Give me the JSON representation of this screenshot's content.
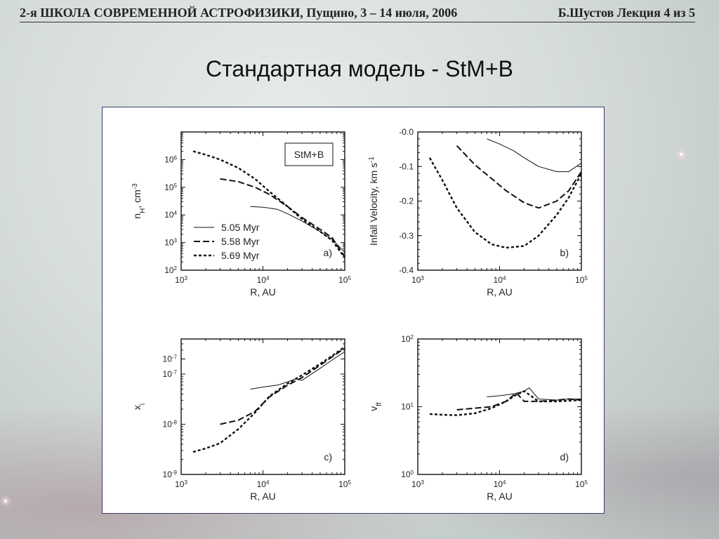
{
  "header": {
    "left": "2-я ШКОЛА СОВРЕМЕННОЙ АСТРОФИЗИКИ,   Пущино, 3 – 14 июля, 2006",
    "right": "Б.Шустов Лекция 4 из 5"
  },
  "slide_title": "Стандартная модель - StM+B",
  "chart_data": [
    {
      "type": "line",
      "panel_label": "a)",
      "box_label": "StM+B",
      "xlabel": "R, AU",
      "ylabel": "n_H, cm^-3",
      "x_scale": "log",
      "y_scale": "log",
      "xlim": [
        1000,
        100000
      ],
      "ylim": [
        100,
        10000000
      ],
      "x_ticks": [
        "10^3",
        "10^4",
        "10^5"
      ],
      "y_ticks": [
        "10^2",
        "10^3",
        "10^4",
        "10^5",
        "10^6"
      ],
      "legend": [
        "5.05 Myr",
        "5.58 Myr",
        "5.69 Myr"
      ],
      "series": [
        {
          "name": "5.05 Myr",
          "style": "solid",
          "x": [
            7000,
            10000,
            15000,
            20000,
            30000,
            50000,
            70000,
            100000
          ],
          "y": [
            20000,
            19000,
            16000,
            11000,
            6000,
            2500,
            1300,
            450
          ]
        },
        {
          "name": "5.58 Myr",
          "style": "dashed",
          "x": [
            3000,
            5000,
            8000,
            12000,
            20000,
            30000,
            50000,
            70000,
            100000
          ],
          "y": [
            200000,
            160000,
            100000,
            55000,
            20000,
            8000,
            3000,
            1500,
            300
          ]
        },
        {
          "name": "5.69 Myr",
          "style": "dotted",
          "x": [
            1400,
            2000,
            3000,
            5000,
            8000,
            12000,
            20000,
            30000,
            50000,
            70000,
            100000
          ],
          "y": [
            2000000,
            1500000,
            1000000,
            500000,
            200000,
            70000,
            20000,
            7000,
            2500,
            1200,
            280
          ]
        }
      ]
    },
    {
      "type": "line",
      "panel_label": "b)",
      "xlabel": "R, AU",
      "ylabel": "Infall Velocity, km s^-1",
      "x_scale": "log",
      "y_scale": "linear",
      "xlim": [
        1000,
        100000
      ],
      "ylim": [
        -0.4,
        0.0
      ],
      "x_ticks": [
        "10^3",
        "10^4",
        "10^5"
      ],
      "y_ticks": [
        "-0.0",
        "-0.1",
        "-0.2",
        "-0.3",
        "-0.4"
      ],
      "series": [
        {
          "name": "5.05 Myr",
          "style": "solid",
          "x": [
            7000,
            10000,
            15000,
            20000,
            30000,
            50000,
            70000,
            100000
          ],
          "y": [
            -0.02,
            -0.035,
            -0.055,
            -0.075,
            -0.1,
            -0.115,
            -0.115,
            -0.09
          ]
        },
        {
          "name": "5.58 Myr",
          "style": "dashed",
          "x": [
            3000,
            5000,
            8000,
            12000,
            20000,
            30000,
            50000,
            70000,
            100000
          ],
          "y": [
            -0.04,
            -0.095,
            -0.135,
            -0.17,
            -0.205,
            -0.22,
            -0.2,
            -0.17,
            -0.115
          ]
        },
        {
          "name": "5.69 Myr",
          "style": "dotted",
          "x": [
            1400,
            2000,
            3000,
            5000,
            8000,
            12000,
            20000,
            30000,
            50000,
            70000,
            100000
          ],
          "y": [
            -0.075,
            -0.14,
            -0.22,
            -0.29,
            -0.325,
            -0.335,
            -0.33,
            -0.3,
            -0.24,
            -0.19,
            -0.12
          ]
        }
      ]
    },
    {
      "type": "line",
      "panel_label": "c)",
      "xlabel": "R, AU",
      "ylabel": "x_i",
      "x_scale": "log",
      "y_scale": "log",
      "xlim": [
        1000,
        100000
      ],
      "ylim": [
        1e-09,
        5e-07
      ],
      "x_ticks": [
        "10^3",
        "10^4",
        "10^5"
      ],
      "y_ticks": [
        "10^-9",
        "10^-8",
        "10^-7",
        "10^-7"
      ],
      "series": [
        {
          "name": "5.05 Myr",
          "style": "solid",
          "x": [
            7000,
            10000,
            15000,
            20000,
            25000,
            30000,
            50000,
            70000,
            100000
          ],
          "y": [
            5e-08,
            5.5e-08,
            6e-08,
            7e-08,
            8e-08,
            7.5e-08,
            1.3e-07,
            1.9e-07,
            2.8e-07
          ]
        },
        {
          "name": "5.58 Myr",
          "style": "dashed",
          "x": [
            3000,
            5000,
            8000,
            12000,
            20000,
            30000,
            50000,
            70000,
            100000
          ],
          "y": [
            1e-08,
            1.2e-08,
            1.8e-08,
            3.5e-08,
            6e-08,
            8.5e-08,
            1.5e-07,
            2.2e-07,
            3.3e-07
          ]
        },
        {
          "name": "5.69 Myr",
          "style": "dotted",
          "x": [
            1400,
            2000,
            3000,
            5000,
            8000,
            12000,
            20000,
            30000,
            50000,
            70000,
            100000
          ],
          "y": [
            2.8e-09,
            3.3e-09,
            4.2e-09,
            8e-09,
            1.7e-08,
            3.6e-08,
            6.5e-08,
            9.5e-08,
            1.6e-07,
            2.3e-07,
            3.5e-07
          ]
        }
      ]
    },
    {
      "type": "line",
      "panel_label": "d)",
      "xlabel": "R, AU",
      "ylabel": "v_ff",
      "x_scale": "log",
      "y_scale": "log",
      "xlim": [
        1000,
        100000
      ],
      "ylim": [
        1,
        100
      ],
      "x_ticks": [
        "10^3",
        "10^4",
        "10^5"
      ],
      "y_ticks": [
        "10^0",
        "10^1",
        "10^2"
      ],
      "series": [
        {
          "name": "5.05 Myr",
          "style": "solid",
          "x": [
            7000,
            10000,
            15000,
            20000,
            23000,
            30000,
            50000,
            70000,
            100000
          ],
          "y": [
            14,
            14.5,
            15.5,
            17,
            19,
            13,
            12.5,
            13,
            13
          ]
        },
        {
          "name": "5.58 Myr",
          "style": "dashed",
          "x": [
            3000,
            5000,
            8000,
            12000,
            16000,
            20000,
            30000,
            50000,
            70000,
            100000
          ],
          "y": [
            9,
            9.5,
            10,
            12,
            16,
            12,
            12,
            12.5,
            13,
            12.5
          ]
        },
        {
          "name": "5.69 Myr",
          "style": "dotted",
          "x": [
            1400,
            2000,
            3000,
            5000,
            8000,
            12000,
            16000,
            20000,
            30000,
            50000,
            100000
          ],
          "y": [
            7.8,
            7.6,
            7.5,
            8,
            9.5,
            12,
            15,
            17,
            12,
            12,
            12.5
          ]
        }
      ]
    }
  ]
}
